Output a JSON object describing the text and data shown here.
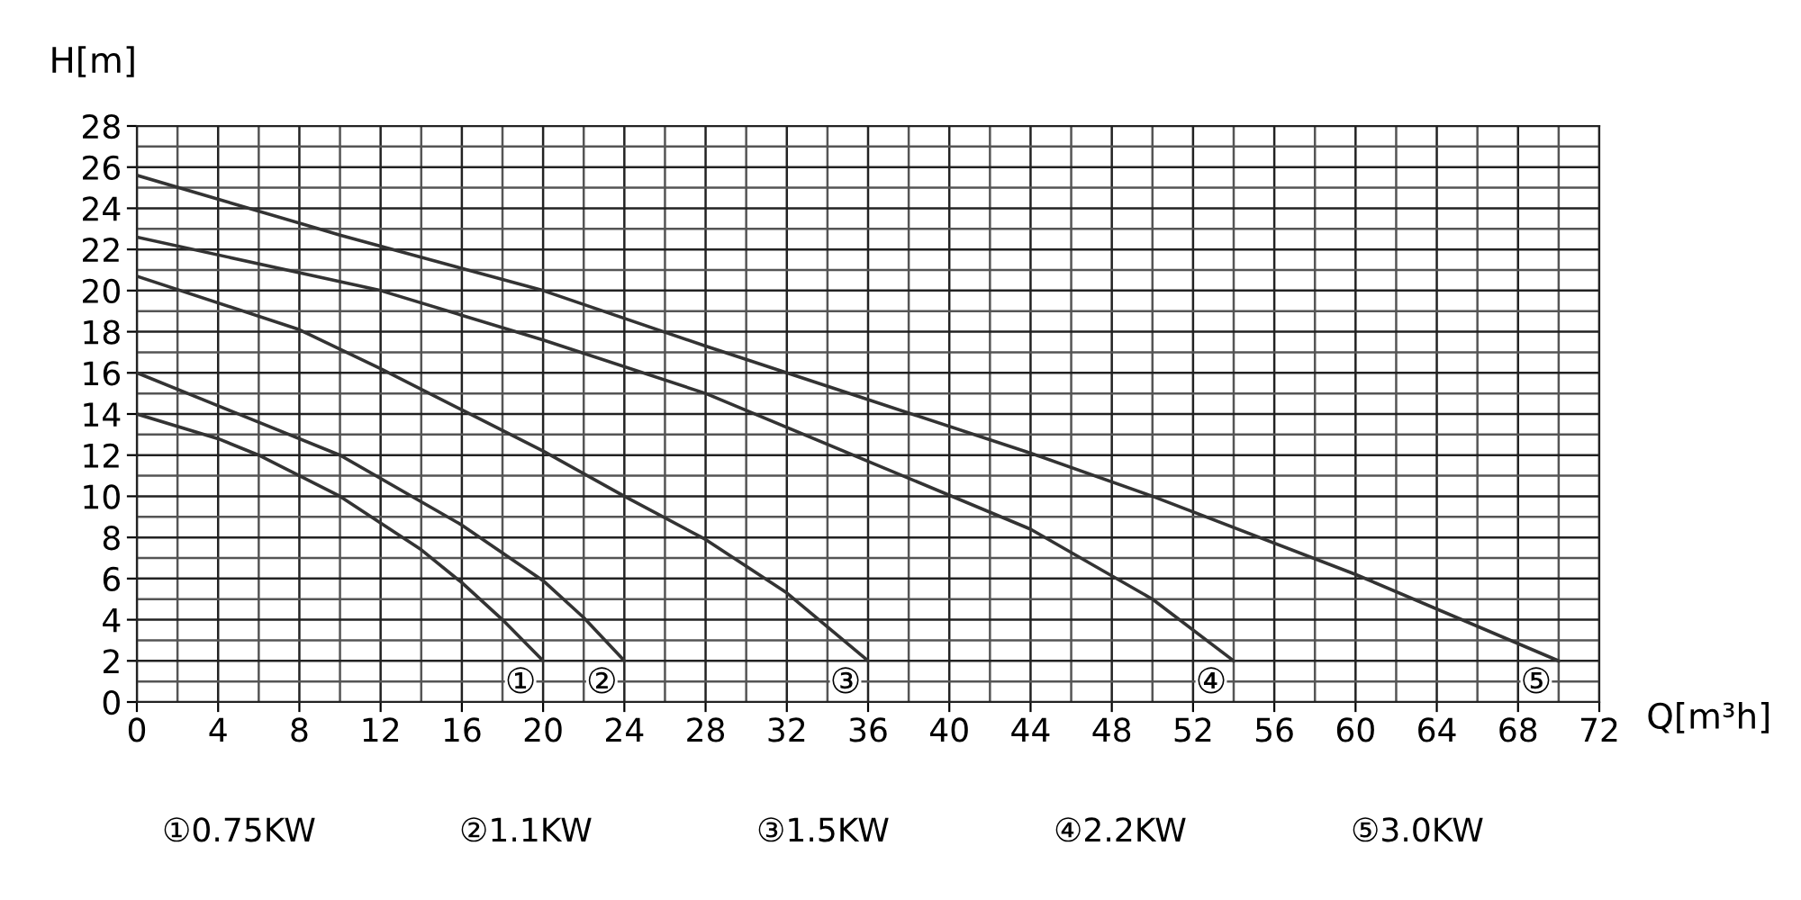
{
  "chart_data": {
    "type": "line",
    "xlabel": "Q[m³h]",
    "ylabel": "H[m]",
    "xlim": [
      0,
      72
    ],
    "xticks": [
      0,
      4,
      8,
      12,
      16,
      20,
      24,
      28,
      32,
      36,
      40,
      44,
      48,
      52,
      56,
      60,
      64,
      68,
      72
    ],
    "ylim": [
      0,
      28
    ],
    "yticks": [
      0,
      2,
      4,
      6,
      8,
      10,
      12,
      14,
      16,
      18,
      20,
      22,
      24,
      26,
      28
    ],
    "grid": true,
    "marker": "none",
    "line_style": "solid",
    "series": [
      {
        "color": "#333333",
        "x": [
          0,
          4,
          6,
          10,
          14,
          16,
          18,
          20
        ],
        "values": [
          14,
          12.8,
          12,
          10,
          7.4,
          5.8,
          4,
          2
        ]
      },
      {
        "color": "#333333",
        "x": [
          0,
          4,
          10,
          16,
          20,
          22,
          24
        ],
        "values": [
          16,
          14.4,
          12,
          8.6,
          5.9,
          4.1,
          2
        ]
      },
      {
        "color": "#333333",
        "x": [
          0,
          8,
          12,
          16,
          20,
          24,
          28,
          32,
          36
        ],
        "values": [
          20.7,
          18.1,
          16.2,
          14.2,
          12.2,
          10,
          7.9,
          5.3,
          2
        ]
      },
      {
        "color": "#333333",
        "x": [
          0,
          12,
          20,
          28,
          36,
          44,
          50,
          54
        ],
        "values": [
          22.6,
          20,
          17.6,
          15,
          11.7,
          8.4,
          5,
          2
        ]
      },
      {
        "color": "#333333",
        "x": [
          0,
          10,
          20,
          28,
          36,
          44,
          50,
          60,
          70
        ],
        "values": [
          25.6,
          22.7,
          20,
          17.3,
          14.7,
          12.1,
          10,
          6.2,
          2
        ]
      }
    ],
    "annotations": [
      {
        "text": "①",
        "x": 20,
        "y": 2
      },
      {
        "text": "②",
        "x": 24,
        "y": 2
      },
      {
        "text": "③",
        "x": 36,
        "y": 2
      },
      {
        "text": "④",
        "x": 54,
        "y": 2
      },
      {
        "text": "⑤",
        "x": 70,
        "y": 2
      },
      "①0.75KW",
      "②1.1KW",
      "③1.5KW",
      "④2.2KW",
      "⑤3.0KW"
    ]
  }
}
